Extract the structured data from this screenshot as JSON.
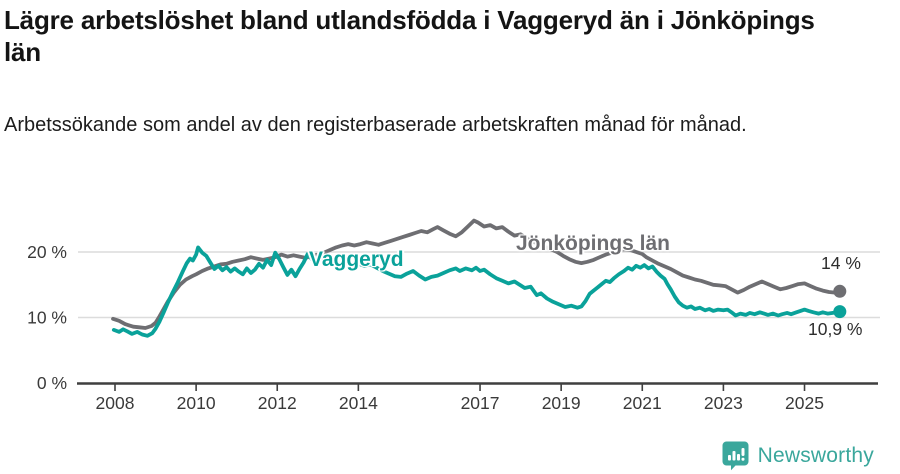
{
  "header": {
    "title": "Lägre arbetslöshet bland utlandsfödda i Vaggeryd än i Jönköpings län",
    "subtitle": "Arbetssökande som andel av den registerbaserade arbetskraften månad för månad."
  },
  "branding": {
    "name": "Newsworthy",
    "icon": "newsworthy-chart-bubble-icon",
    "color": "#3aa79c"
  },
  "chart_data": {
    "type": "line",
    "title": "Lägre arbetslöshet bland utlandsfödda i Vaggeryd än i Jönköpings län",
    "subtitle": "Arbetssökande som andel av den registerbaserade arbetskraften månad för månad.",
    "unit": "%",
    "grid": "horizontal",
    "legend": "inline-labels-on-lines",
    "x_axis": {
      "tick_years": [
        2008,
        2010,
        2012,
        2014,
        2017,
        2019,
        2021,
        2023,
        2025
      ],
      "range": [
        2007.1,
        2026.9
      ]
    },
    "y_axis": {
      "ticks": [
        {
          "value": 0,
          "label": "0 %"
        },
        {
          "value": 10,
          "label": "10 %"
        },
        {
          "value": 20,
          "label": "20 %"
        }
      ],
      "gridlines": [
        10,
        20
      ],
      "range": [
        0,
        26.6
      ]
    },
    "series": [
      {
        "name": "Jönköpings län",
        "color": "#6e6e72",
        "end_label": "14 %",
        "end_value": 14.0,
        "points": [
          [
            2007.95,
            9.8
          ],
          [
            2008.1,
            9.5
          ],
          [
            2008.25,
            9.0
          ],
          [
            2008.45,
            8.6
          ],
          [
            2008.6,
            8.5
          ],
          [
            2008.75,
            8.4
          ],
          [
            2008.9,
            8.7
          ],
          [
            2009.0,
            9.2
          ],
          [
            2009.1,
            10.2
          ],
          [
            2009.2,
            11.3
          ],
          [
            2009.3,
            12.4
          ],
          [
            2009.45,
            13.8
          ],
          [
            2009.6,
            15.0
          ],
          [
            2009.75,
            15.8
          ],
          [
            2009.9,
            16.3
          ],
          [
            2010.0,
            16.6
          ],
          [
            2010.15,
            17.1
          ],
          [
            2010.3,
            17.5
          ],
          [
            2010.45,
            17.8
          ],
          [
            2010.6,
            18.1
          ],
          [
            2010.75,
            18.2
          ],
          [
            2010.9,
            18.5
          ],
          [
            2011.05,
            18.7
          ],
          [
            2011.2,
            18.9
          ],
          [
            2011.35,
            19.2
          ],
          [
            2011.5,
            19.0
          ],
          [
            2011.65,
            18.8
          ],
          [
            2011.8,
            19.0
          ],
          [
            2011.95,
            19.2
          ],
          [
            2012.1,
            19.6
          ],
          [
            2012.25,
            19.3
          ],
          [
            2012.4,
            19.5
          ],
          [
            2012.55,
            19.3
          ],
          [
            2012.7,
            19.1
          ],
          [
            2012.85,
            19.4
          ],
          [
            2013.0,
            19.6
          ],
          [
            2013.15,
            19.9
          ],
          [
            2013.3,
            20.3
          ],
          [
            2013.45,
            20.7
          ],
          [
            2013.6,
            21.0
          ],
          [
            2013.75,
            21.2
          ],
          [
            2013.9,
            21.0
          ],
          [
            2014.05,
            21.2
          ],
          [
            2014.2,
            21.5
          ],
          [
            2014.35,
            21.3
          ],
          [
            2014.5,
            21.1
          ],
          [
            2014.65,
            21.4
          ],
          [
            2014.8,
            21.7
          ],
          [
            2014.95,
            22.0
          ],
          [
            2015.1,
            22.3
          ],
          [
            2015.25,
            22.6
          ],
          [
            2015.4,
            22.9
          ],
          [
            2015.55,
            23.2
          ],
          [
            2015.7,
            23.0
          ],
          [
            2015.85,
            23.5
          ],
          [
            2015.95,
            23.8
          ],
          [
            2016.1,
            23.3
          ],
          [
            2016.25,
            22.8
          ],
          [
            2016.4,
            22.4
          ],
          [
            2016.55,
            23.0
          ],
          [
            2016.7,
            23.9
          ],
          [
            2016.85,
            24.8
          ],
          [
            2016.95,
            24.5
          ],
          [
            2017.1,
            23.9
          ],
          [
            2017.25,
            24.1
          ],
          [
            2017.4,
            23.6
          ],
          [
            2017.55,
            23.8
          ],
          [
            2017.7,
            23.1
          ],
          [
            2017.85,
            22.5
          ],
          [
            2018.0,
            22.7
          ],
          [
            2018.15,
            22.1
          ],
          [
            2018.3,
            21.6
          ],
          [
            2018.45,
            21.2
          ],
          [
            2018.6,
            20.8
          ],
          [
            2018.75,
            20.4
          ],
          [
            2018.9,
            20.0
          ],
          [
            2019.05,
            19.4
          ],
          [
            2019.2,
            18.9
          ],
          [
            2019.35,
            18.5
          ],
          [
            2019.5,
            18.3
          ],
          [
            2019.65,
            18.5
          ],
          [
            2019.8,
            18.8
          ],
          [
            2019.95,
            19.2
          ],
          [
            2020.1,
            19.6
          ],
          [
            2020.25,
            19.9
          ],
          [
            2020.4,
            20.2
          ],
          [
            2020.55,
            20.4
          ],
          [
            2020.7,
            20.3
          ],
          [
            2020.85,
            20.0
          ],
          [
            2021.0,
            19.7
          ],
          [
            2021.1,
            19.2
          ],
          [
            2021.25,
            18.7
          ],
          [
            2021.4,
            18.2
          ],
          [
            2021.55,
            17.8
          ],
          [
            2021.7,
            17.4
          ],
          [
            2021.85,
            16.9
          ],
          [
            2022.0,
            16.4
          ],
          [
            2022.15,
            16.1
          ],
          [
            2022.3,
            15.8
          ],
          [
            2022.45,
            15.6
          ],
          [
            2022.6,
            15.3
          ],
          [
            2022.75,
            15.0
          ],
          [
            2022.9,
            14.9
          ],
          [
            2023.05,
            14.8
          ],
          [
            2023.2,
            14.3
          ],
          [
            2023.35,
            13.8
          ],
          [
            2023.5,
            14.2
          ],
          [
            2023.65,
            14.7
          ],
          [
            2023.8,
            15.1
          ],
          [
            2023.95,
            15.5
          ],
          [
            2024.1,
            15.1
          ],
          [
            2024.25,
            14.7
          ],
          [
            2024.4,
            14.3
          ],
          [
            2024.55,
            14.5
          ],
          [
            2024.7,
            14.8
          ],
          [
            2024.85,
            15.1
          ],
          [
            2025.0,
            15.2
          ],
          [
            2025.15,
            14.8
          ],
          [
            2025.3,
            14.4
          ],
          [
            2025.45,
            14.1
          ],
          [
            2025.6,
            13.9
          ],
          [
            2025.75,
            13.8
          ],
          [
            2025.87,
            14.0
          ]
        ]
      },
      {
        "name": "Vaggeryd",
        "color": "#0aa29a",
        "end_label": "10,9 %",
        "end_value": 10.9,
        "points": [
          [
            2007.97,
            8.1
          ],
          [
            2008.1,
            7.8
          ],
          [
            2008.2,
            8.2
          ],
          [
            2008.3,
            7.9
          ],
          [
            2008.42,
            7.5
          ],
          [
            2008.55,
            7.8
          ],
          [
            2008.67,
            7.4
          ],
          [
            2008.8,
            7.2
          ],
          [
            2008.92,
            7.6
          ],
          [
            2009.0,
            8.3
          ],
          [
            2009.1,
            9.4
          ],
          [
            2009.2,
            10.8
          ],
          [
            2009.3,
            12.2
          ],
          [
            2009.42,
            13.8
          ],
          [
            2009.55,
            15.4
          ],
          [
            2009.67,
            17.0
          ],
          [
            2009.77,
            18.3
          ],
          [
            2009.85,
            19.0
          ],
          [
            2009.92,
            18.7
          ],
          [
            2010.0,
            19.6
          ],
          [
            2010.05,
            20.7
          ],
          [
            2010.15,
            19.9
          ],
          [
            2010.25,
            19.4
          ],
          [
            2010.35,
            18.4
          ],
          [
            2010.45,
            17.4
          ],
          [
            2010.55,
            17.9
          ],
          [
            2010.65,
            17.2
          ],
          [
            2010.75,
            17.7
          ],
          [
            2010.85,
            17.0
          ],
          [
            2010.95,
            17.5
          ],
          [
            2011.05,
            17.0
          ],
          [
            2011.15,
            16.6
          ],
          [
            2011.25,
            17.5
          ],
          [
            2011.35,
            16.8
          ],
          [
            2011.45,
            17.3
          ],
          [
            2011.55,
            18.2
          ],
          [
            2011.65,
            17.6
          ],
          [
            2011.75,
            18.8
          ],
          [
            2011.85,
            18.0
          ],
          [
            2011.95,
            19.9
          ],
          [
            2012.05,
            18.9
          ],
          [
            2012.15,
            17.7
          ],
          [
            2012.25,
            16.5
          ],
          [
            2012.35,
            17.3
          ],
          [
            2012.45,
            16.3
          ],
          [
            2012.55,
            17.4
          ],
          [
            2012.65,
            18.4
          ],
          [
            2012.75,
            19.7
          ],
          [
            2012.85,
            18.9
          ],
          [
            2012.95,
            18.5
          ],
          [
            2013.1,
            18.8
          ],
          [
            2013.25,
            18.3
          ],
          [
            2013.4,
            18.6
          ],
          [
            2013.55,
            18.1
          ],
          [
            2013.7,
            18.4
          ],
          [
            2013.85,
            18.0
          ],
          [
            2014.0,
            18.2
          ],
          [
            2014.15,
            17.9
          ],
          [
            2014.3,
            18.1
          ],
          [
            2014.45,
            17.6
          ],
          [
            2014.6,
            17.1
          ],
          [
            2014.75,
            16.7
          ],
          [
            2014.9,
            16.3
          ],
          [
            2015.05,
            16.2
          ],
          [
            2015.2,
            16.7
          ],
          [
            2015.35,
            17.1
          ],
          [
            2015.5,
            16.4
          ],
          [
            2015.65,
            15.8
          ],
          [
            2015.8,
            16.2
          ],
          [
            2015.95,
            16.4
          ],
          [
            2016.1,
            16.8
          ],
          [
            2016.25,
            17.2
          ],
          [
            2016.4,
            17.5
          ],
          [
            2016.5,
            17.1
          ],
          [
            2016.65,
            17.5
          ],
          [
            2016.8,
            17.2
          ],
          [
            2016.9,
            17.6
          ],
          [
            2017.0,
            17.1
          ],
          [
            2017.1,
            17.3
          ],
          [
            2017.25,
            16.6
          ],
          [
            2017.4,
            16.0
          ],
          [
            2017.55,
            15.6
          ],
          [
            2017.7,
            15.2
          ],
          [
            2017.85,
            15.5
          ],
          [
            2018.0,
            14.9
          ],
          [
            2018.1,
            14.5
          ],
          [
            2018.25,
            14.7
          ],
          [
            2018.4,
            13.4
          ],
          [
            2018.5,
            13.7
          ],
          [
            2018.65,
            12.9
          ],
          [
            2018.8,
            12.4
          ],
          [
            2018.95,
            12.0
          ],
          [
            2019.1,
            11.6
          ],
          [
            2019.25,
            11.8
          ],
          [
            2019.4,
            11.5
          ],
          [
            2019.5,
            11.7
          ],
          [
            2019.6,
            12.5
          ],
          [
            2019.7,
            13.6
          ],
          [
            2019.8,
            14.1
          ],
          [
            2019.9,
            14.6
          ],
          [
            2020.0,
            15.1
          ],
          [
            2020.1,
            15.6
          ],
          [
            2020.2,
            15.4
          ],
          [
            2020.3,
            16.0
          ],
          [
            2020.42,
            16.6
          ],
          [
            2020.55,
            17.1
          ],
          [
            2020.65,
            17.6
          ],
          [
            2020.75,
            17.3
          ],
          [
            2020.85,
            17.9
          ],
          [
            2020.95,
            17.6
          ],
          [
            2021.05,
            18.0
          ],
          [
            2021.15,
            17.5
          ],
          [
            2021.25,
            17.8
          ],
          [
            2021.35,
            17.0
          ],
          [
            2021.45,
            16.4
          ],
          [
            2021.55,
            15.9
          ],
          [
            2021.62,
            15.1
          ],
          [
            2021.7,
            14.3
          ],
          [
            2021.8,
            13.2
          ],
          [
            2021.9,
            12.3
          ],
          [
            2022.0,
            11.8
          ],
          [
            2022.1,
            11.5
          ],
          [
            2022.2,
            11.7
          ],
          [
            2022.3,
            11.3
          ],
          [
            2022.42,
            11.5
          ],
          [
            2022.55,
            11.1
          ],
          [
            2022.65,
            11.3
          ],
          [
            2022.75,
            11.0
          ],
          [
            2022.87,
            11.2
          ],
          [
            2023.0,
            11.1
          ],
          [
            2023.1,
            11.2
          ],
          [
            2023.2,
            10.8
          ],
          [
            2023.3,
            10.3
          ],
          [
            2023.42,
            10.6
          ],
          [
            2023.55,
            10.4
          ],
          [
            2023.65,
            10.7
          ],
          [
            2023.77,
            10.5
          ],
          [
            2023.9,
            10.8
          ],
          [
            2024.0,
            10.6
          ],
          [
            2024.1,
            10.4
          ],
          [
            2024.22,
            10.6
          ],
          [
            2024.35,
            10.3
          ],
          [
            2024.45,
            10.5
          ],
          [
            2024.57,
            10.7
          ],
          [
            2024.67,
            10.5
          ],
          [
            2024.8,
            10.8
          ],
          [
            2024.9,
            11.0
          ],
          [
            2025.0,
            11.2
          ],
          [
            2025.1,
            11.0
          ],
          [
            2025.22,
            10.8
          ],
          [
            2025.35,
            10.6
          ],
          [
            2025.45,
            10.8
          ],
          [
            2025.57,
            10.6
          ],
          [
            2025.7,
            10.7
          ],
          [
            2025.8,
            10.8
          ],
          [
            2025.87,
            10.9
          ]
        ]
      }
    ]
  }
}
